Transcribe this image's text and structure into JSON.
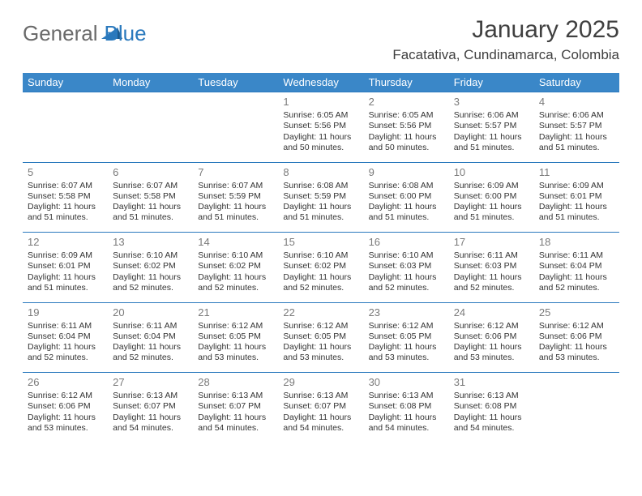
{
  "brand": {
    "part1": "General",
    "part2": "Blue"
  },
  "title": "January 2025",
  "location": "Facatativa, Cundinamarca, Colombia",
  "colors": {
    "header_bg": "#3a87c8",
    "header_text": "#ffffff",
    "rule": "#2a79bd",
    "daynum": "#7a7a7a",
    "body_text": "#333333",
    "brand_gray": "#6a6a6a",
    "brand_blue": "#2a79bd",
    "page_bg": "#ffffff"
  },
  "day_labels": [
    "Sunday",
    "Monday",
    "Tuesday",
    "Wednesday",
    "Thursday",
    "Friday",
    "Saturday"
  ],
  "weeks": [
    [
      {
        "n": "",
        "sr": "",
        "ss": "",
        "dl": ""
      },
      {
        "n": "",
        "sr": "",
        "ss": "",
        "dl": ""
      },
      {
        "n": "",
        "sr": "",
        "ss": "",
        "dl": ""
      },
      {
        "n": "1",
        "sr": "Sunrise: 6:05 AM",
        "ss": "Sunset: 5:56 PM",
        "dl": "Daylight: 11 hours and 50 minutes."
      },
      {
        "n": "2",
        "sr": "Sunrise: 6:05 AM",
        "ss": "Sunset: 5:56 PM",
        "dl": "Daylight: 11 hours and 50 minutes."
      },
      {
        "n": "3",
        "sr": "Sunrise: 6:06 AM",
        "ss": "Sunset: 5:57 PM",
        "dl": "Daylight: 11 hours and 51 minutes."
      },
      {
        "n": "4",
        "sr": "Sunrise: 6:06 AM",
        "ss": "Sunset: 5:57 PM",
        "dl": "Daylight: 11 hours and 51 minutes."
      }
    ],
    [
      {
        "n": "5",
        "sr": "Sunrise: 6:07 AM",
        "ss": "Sunset: 5:58 PM",
        "dl": "Daylight: 11 hours and 51 minutes."
      },
      {
        "n": "6",
        "sr": "Sunrise: 6:07 AM",
        "ss": "Sunset: 5:58 PM",
        "dl": "Daylight: 11 hours and 51 minutes."
      },
      {
        "n": "7",
        "sr": "Sunrise: 6:07 AM",
        "ss": "Sunset: 5:59 PM",
        "dl": "Daylight: 11 hours and 51 minutes."
      },
      {
        "n": "8",
        "sr": "Sunrise: 6:08 AM",
        "ss": "Sunset: 5:59 PM",
        "dl": "Daylight: 11 hours and 51 minutes."
      },
      {
        "n": "9",
        "sr": "Sunrise: 6:08 AM",
        "ss": "Sunset: 6:00 PM",
        "dl": "Daylight: 11 hours and 51 minutes."
      },
      {
        "n": "10",
        "sr": "Sunrise: 6:09 AM",
        "ss": "Sunset: 6:00 PM",
        "dl": "Daylight: 11 hours and 51 minutes."
      },
      {
        "n": "11",
        "sr": "Sunrise: 6:09 AM",
        "ss": "Sunset: 6:01 PM",
        "dl": "Daylight: 11 hours and 51 minutes."
      }
    ],
    [
      {
        "n": "12",
        "sr": "Sunrise: 6:09 AM",
        "ss": "Sunset: 6:01 PM",
        "dl": "Daylight: 11 hours and 51 minutes."
      },
      {
        "n": "13",
        "sr": "Sunrise: 6:10 AM",
        "ss": "Sunset: 6:02 PM",
        "dl": "Daylight: 11 hours and 52 minutes."
      },
      {
        "n": "14",
        "sr": "Sunrise: 6:10 AM",
        "ss": "Sunset: 6:02 PM",
        "dl": "Daylight: 11 hours and 52 minutes."
      },
      {
        "n": "15",
        "sr": "Sunrise: 6:10 AM",
        "ss": "Sunset: 6:02 PM",
        "dl": "Daylight: 11 hours and 52 minutes."
      },
      {
        "n": "16",
        "sr": "Sunrise: 6:10 AM",
        "ss": "Sunset: 6:03 PM",
        "dl": "Daylight: 11 hours and 52 minutes."
      },
      {
        "n": "17",
        "sr": "Sunrise: 6:11 AM",
        "ss": "Sunset: 6:03 PM",
        "dl": "Daylight: 11 hours and 52 minutes."
      },
      {
        "n": "18",
        "sr": "Sunrise: 6:11 AM",
        "ss": "Sunset: 6:04 PM",
        "dl": "Daylight: 11 hours and 52 minutes."
      }
    ],
    [
      {
        "n": "19",
        "sr": "Sunrise: 6:11 AM",
        "ss": "Sunset: 6:04 PM",
        "dl": "Daylight: 11 hours and 52 minutes."
      },
      {
        "n": "20",
        "sr": "Sunrise: 6:11 AM",
        "ss": "Sunset: 6:04 PM",
        "dl": "Daylight: 11 hours and 52 minutes."
      },
      {
        "n": "21",
        "sr": "Sunrise: 6:12 AM",
        "ss": "Sunset: 6:05 PM",
        "dl": "Daylight: 11 hours and 53 minutes."
      },
      {
        "n": "22",
        "sr": "Sunrise: 6:12 AM",
        "ss": "Sunset: 6:05 PM",
        "dl": "Daylight: 11 hours and 53 minutes."
      },
      {
        "n": "23",
        "sr": "Sunrise: 6:12 AM",
        "ss": "Sunset: 6:05 PM",
        "dl": "Daylight: 11 hours and 53 minutes."
      },
      {
        "n": "24",
        "sr": "Sunrise: 6:12 AM",
        "ss": "Sunset: 6:06 PM",
        "dl": "Daylight: 11 hours and 53 minutes."
      },
      {
        "n": "25",
        "sr": "Sunrise: 6:12 AM",
        "ss": "Sunset: 6:06 PM",
        "dl": "Daylight: 11 hours and 53 minutes."
      }
    ],
    [
      {
        "n": "26",
        "sr": "Sunrise: 6:12 AM",
        "ss": "Sunset: 6:06 PM",
        "dl": "Daylight: 11 hours and 53 minutes."
      },
      {
        "n": "27",
        "sr": "Sunrise: 6:13 AM",
        "ss": "Sunset: 6:07 PM",
        "dl": "Daylight: 11 hours and 54 minutes."
      },
      {
        "n": "28",
        "sr": "Sunrise: 6:13 AM",
        "ss": "Sunset: 6:07 PM",
        "dl": "Daylight: 11 hours and 54 minutes."
      },
      {
        "n": "29",
        "sr": "Sunrise: 6:13 AM",
        "ss": "Sunset: 6:07 PM",
        "dl": "Daylight: 11 hours and 54 minutes."
      },
      {
        "n": "30",
        "sr": "Sunrise: 6:13 AM",
        "ss": "Sunset: 6:08 PM",
        "dl": "Daylight: 11 hours and 54 minutes."
      },
      {
        "n": "31",
        "sr": "Sunrise: 6:13 AM",
        "ss": "Sunset: 6:08 PM",
        "dl": "Daylight: 11 hours and 54 minutes."
      },
      {
        "n": "",
        "sr": "",
        "ss": "",
        "dl": ""
      }
    ]
  ]
}
